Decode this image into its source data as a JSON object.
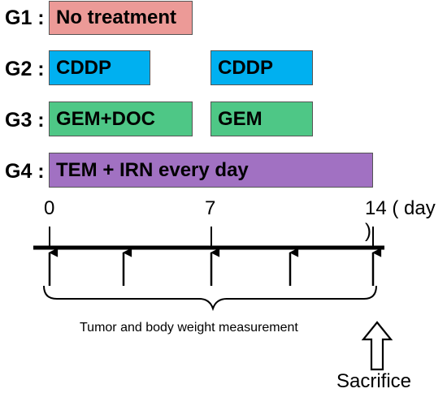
{
  "colors": {
    "g1": "#ec9a97",
    "g2": "#00b0f0",
    "g3": "#4ec786",
    "g4": "#a171c2",
    "line": "#000000"
  },
  "groups": [
    {
      "label": "G1 :",
      "bars": [
        {
          "text": "No treatment"
        }
      ]
    },
    {
      "label": "G2 :",
      "bars": [
        {
          "text": "CDDP"
        },
        {
          "text": "CDDP"
        }
      ]
    },
    {
      "label": "G3 :",
      "bars": [
        {
          "text": "GEM+DOC"
        },
        {
          "text": "GEM"
        }
      ]
    },
    {
      "label": "G4 :",
      "bars": [
        {
          "text": "TEM + IRN every day"
        }
      ]
    }
  ],
  "timeline": {
    "ticks": [
      "0",
      "7",
      "14 ( day )"
    ],
    "caption": "Tumor and body weight measurement",
    "endpoint": "Sacrifice"
  }
}
